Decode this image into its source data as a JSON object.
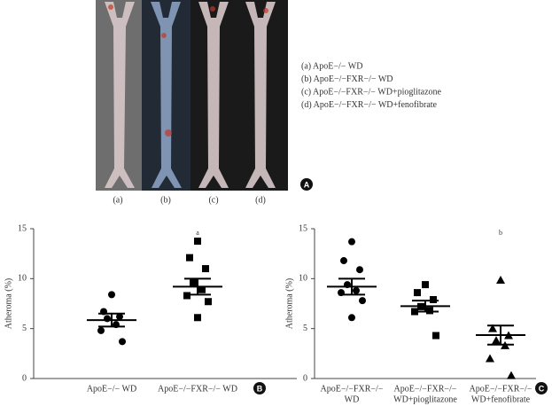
{
  "panel_a": {
    "photo_labels": [
      "(a)",
      "(b)",
      "(c)",
      "(d)"
    ],
    "legend": [
      "(a) ApoE−/− WD",
      "(b) ApoE−/−FXR−/− WD",
      "(c) ApoE−/−FXR−/− WD+pioglitazone",
      "(d) ApoE−/−FXR−/− WD+fenofibrate"
    ],
    "letter": "A"
  },
  "chart_data": [
    {
      "type": "dotplot",
      "panel": "B",
      "y_label": "Atheroma (%)",
      "ylim": [
        0,
        15
      ],
      "yticks": [
        0,
        5,
        10,
        15
      ],
      "series": [
        {
          "name": [
            "ApoE−/− WD"
          ],
          "marker": "circle",
          "color": "#000000",
          "values": [
            8.4,
            6.7,
            6.2,
            6.0,
            5.4,
            4.8,
            3.7
          ],
          "mean": 5.85,
          "error": 0.65
        },
        {
          "name": [
            "ApoE−/−FXR−/− WD"
          ],
          "marker": "square",
          "color": "#000000",
          "values": [
            13.75,
            12.1,
            11.0,
            9.6,
            8.9,
            8.3,
            7.7,
            6.1
          ],
          "mean": 9.2,
          "error": 0.8,
          "annotation": "a"
        }
      ]
    },
    {
      "type": "dotplot",
      "panel": "C",
      "y_label": "Atheroma (%)",
      "ylim": [
        0,
        15
      ],
      "yticks": [
        0,
        5,
        10,
        15
      ],
      "series": [
        {
          "name": [
            "ApoE−/−FXR−/−",
            "WD"
          ],
          "marker": "circle",
          "color": "#000000",
          "values": [
            13.7,
            11.8,
            10.9,
            9.4,
            8.8,
            8.6,
            7.8,
            6.1
          ],
          "mean": 9.2,
          "error": 0.8
        },
        {
          "name": [
            "ApoE−/−FXR−/−",
            "WD+pioglitazone"
          ],
          "marker": "square",
          "color": "#000000",
          "values": [
            9.4,
            8.6,
            7.9,
            7.2,
            6.8,
            6.7,
            4.3
          ],
          "mean": 7.25,
          "error": 0.55
        },
        {
          "name": [
            "ApoE−/−FXR−/−",
            "WD+fenofibrate"
          ],
          "marker": "triangle",
          "color": "#000000",
          "values": [
            9.85,
            5.0,
            4.3,
            3.8,
            3.3,
            2.0,
            0.3
          ],
          "mean": 4.35,
          "error": 0.95,
          "annotation": "b"
        }
      ]
    }
  ]
}
